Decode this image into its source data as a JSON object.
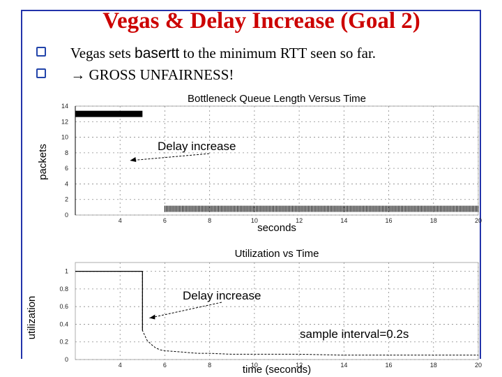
{
  "slide": {
    "title": "Vegas & Delay Increase (Goal 2)",
    "bullets": [
      {
        "prefix": "Vegas sets ",
        "code": "basertt",
        "suffix": " to the minimum RTT seen so far."
      },
      {
        "prefix": "→ GROSS UNFAIRNESS!"
      }
    ]
  },
  "chart_data": [
    {
      "type": "bar",
      "title": "Bottleneck Queue Length Versus Time",
      "xlabel": "seconds",
      "ylabel": "packets",
      "xlim": [
        2,
        20
      ],
      "ylim": [
        0,
        14
      ],
      "x_ticks": [
        4,
        6,
        8,
        10,
        12,
        14,
        16,
        18,
        20
      ],
      "y_ticks": [
        0,
        2,
        4,
        6,
        8,
        10,
        12,
        14
      ],
      "grid": true,
      "series": [
        {
          "x_start": 2,
          "x_end": 5,
          "value": 13
        },
        {
          "x_start": 6,
          "x_end": 20,
          "value": 1
        }
      ],
      "annotation": {
        "text": "Delay increase",
        "points_to_x": 5,
        "points_to_y": 7
      }
    },
    {
      "type": "line",
      "title": "Utilization vs Time",
      "xlabel": "time (seconds)",
      "ylabel": "utilization",
      "xlim": [
        2,
        20
      ],
      "ylim": [
        0,
        1.1
      ],
      "x_ticks": [
        4,
        6,
        8,
        10,
        12,
        14,
        16,
        18,
        20
      ],
      "y_ticks": [
        0,
        0.2,
        0.4,
        0.6,
        0.8,
        1
      ],
      "grid": true,
      "series": [
        {
          "x": [
            2,
            5,
            5,
            5.2,
            5.4,
            5.6,
            5.8,
            6,
            6.5,
            7,
            7.5,
            8,
            9,
            10,
            12,
            14,
            16,
            18,
            20
          ],
          "y": [
            1,
            1,
            0.33,
            0.22,
            0.17,
            0.13,
            0.11,
            0.1,
            0.09,
            0.08,
            0.07,
            0.07,
            0.06,
            0.06,
            0.06,
            0.05,
            0.05,
            0.05,
            0.05
          ]
        }
      ],
      "annotations": [
        {
          "text": "Delay increase",
          "points_to_x": 5,
          "points_to_y": 0.6
        },
        {
          "text": "sample interval=0.2s"
        }
      ]
    }
  ]
}
